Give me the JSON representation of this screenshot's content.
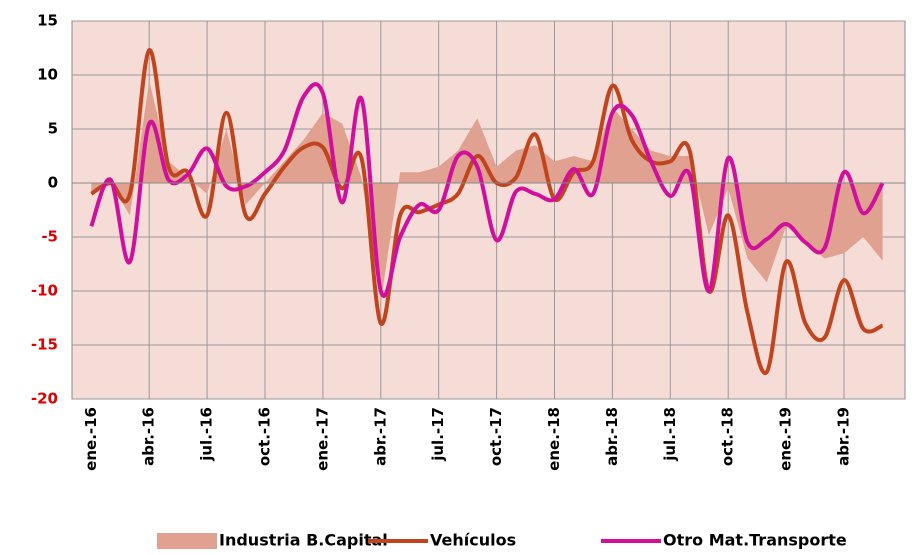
{
  "chart_data": {
    "type": "line",
    "categories": [
      "ene.-16",
      null,
      null,
      "abr.-16",
      null,
      null,
      "jul.-16",
      null,
      null,
      "oct.-16",
      null,
      null,
      "ene.-17",
      null,
      null,
      "abr.-17",
      null,
      null,
      "jul.-17",
      null,
      null,
      "oct.-17",
      null,
      null,
      "ene.-18",
      null,
      null,
      "abr.-18",
      null,
      null,
      "jul.-18",
      null,
      null,
      "oct.-18",
      null,
      null,
      "ene.-19",
      null,
      null,
      "abr.-19",
      null,
      null
    ],
    "series": [
      {
        "name": "Industria B.Capital",
        "kind": "area",
        "color": "#e0a190",
        "values": [
          -1,
          0,
          -3,
          9.5,
          2,
          0.5,
          -1,
          5,
          -2,
          0,
          2,
          4,
          6.5,
          5.5,
          0.5,
          -11,
          1,
          1,
          1.5,
          3,
          6,
          1.5,
          3,
          3.5,
          2,
          2.5,
          2,
          7,
          5,
          3,
          2.5,
          2.5,
          -4.8,
          -0.5,
          -7,
          -9.2,
          -4,
          -5.5,
          -7,
          -6.5,
          -5,
          -7.2
        ]
      },
      {
        "name": "Vehículos",
        "kind": "line",
        "color": "#c0451e",
        "values": [
          -1,
          0,
          -1,
          12.3,
          1.5,
          1,
          -3,
          6.5,
          -3,
          -1,
          1.5,
          3.3,
          3.3,
          -0.5,
          2.3,
          -13,
          -3,
          -2.7,
          -2,
          -1,
          2.5,
          0,
          0.5,
          4.5,
          -1.5,
          1,
          2,
          9,
          4,
          2,
          2,
          3,
          -10,
          -3,
          -12,
          -17.5,
          -7.3,
          -13,
          -14.3,
          -9,
          -13.5,
          -13.2
        ]
      },
      {
        "name": "Otro Mat.Transporte",
        "kind": "line",
        "color": "#d0109c",
        "values": [
          -4,
          0.3,
          -7.3,
          5.5,
          0.3,
          0.8,
          3.2,
          -0.3,
          -0.3,
          1,
          3,
          8,
          8.3,
          -1.8,
          7.8,
          -10,
          -5,
          -2,
          -2.5,
          2.5,
          1.5,
          -5.3,
          -0.8,
          -1,
          -1.5,
          1.3,
          -1,
          6.5,
          6.3,
          2,
          -1.2,
          0.8,
          -10,
          2.3,
          -5.5,
          -5.2,
          -3.8,
          -5.5,
          -6,
          1,
          -2.8,
          0
        ]
      }
    ],
    "ylim": [
      -20,
      15
    ],
    "yticks": [
      -20,
      -15,
      -10,
      -5,
      0,
      5,
      10,
      15
    ],
    "grid": true,
    "plot_background": "#f6dcd6",
    "tick_color": "#000000",
    "negative_tick_color": "#e00000",
    "legend": "bottom"
  }
}
